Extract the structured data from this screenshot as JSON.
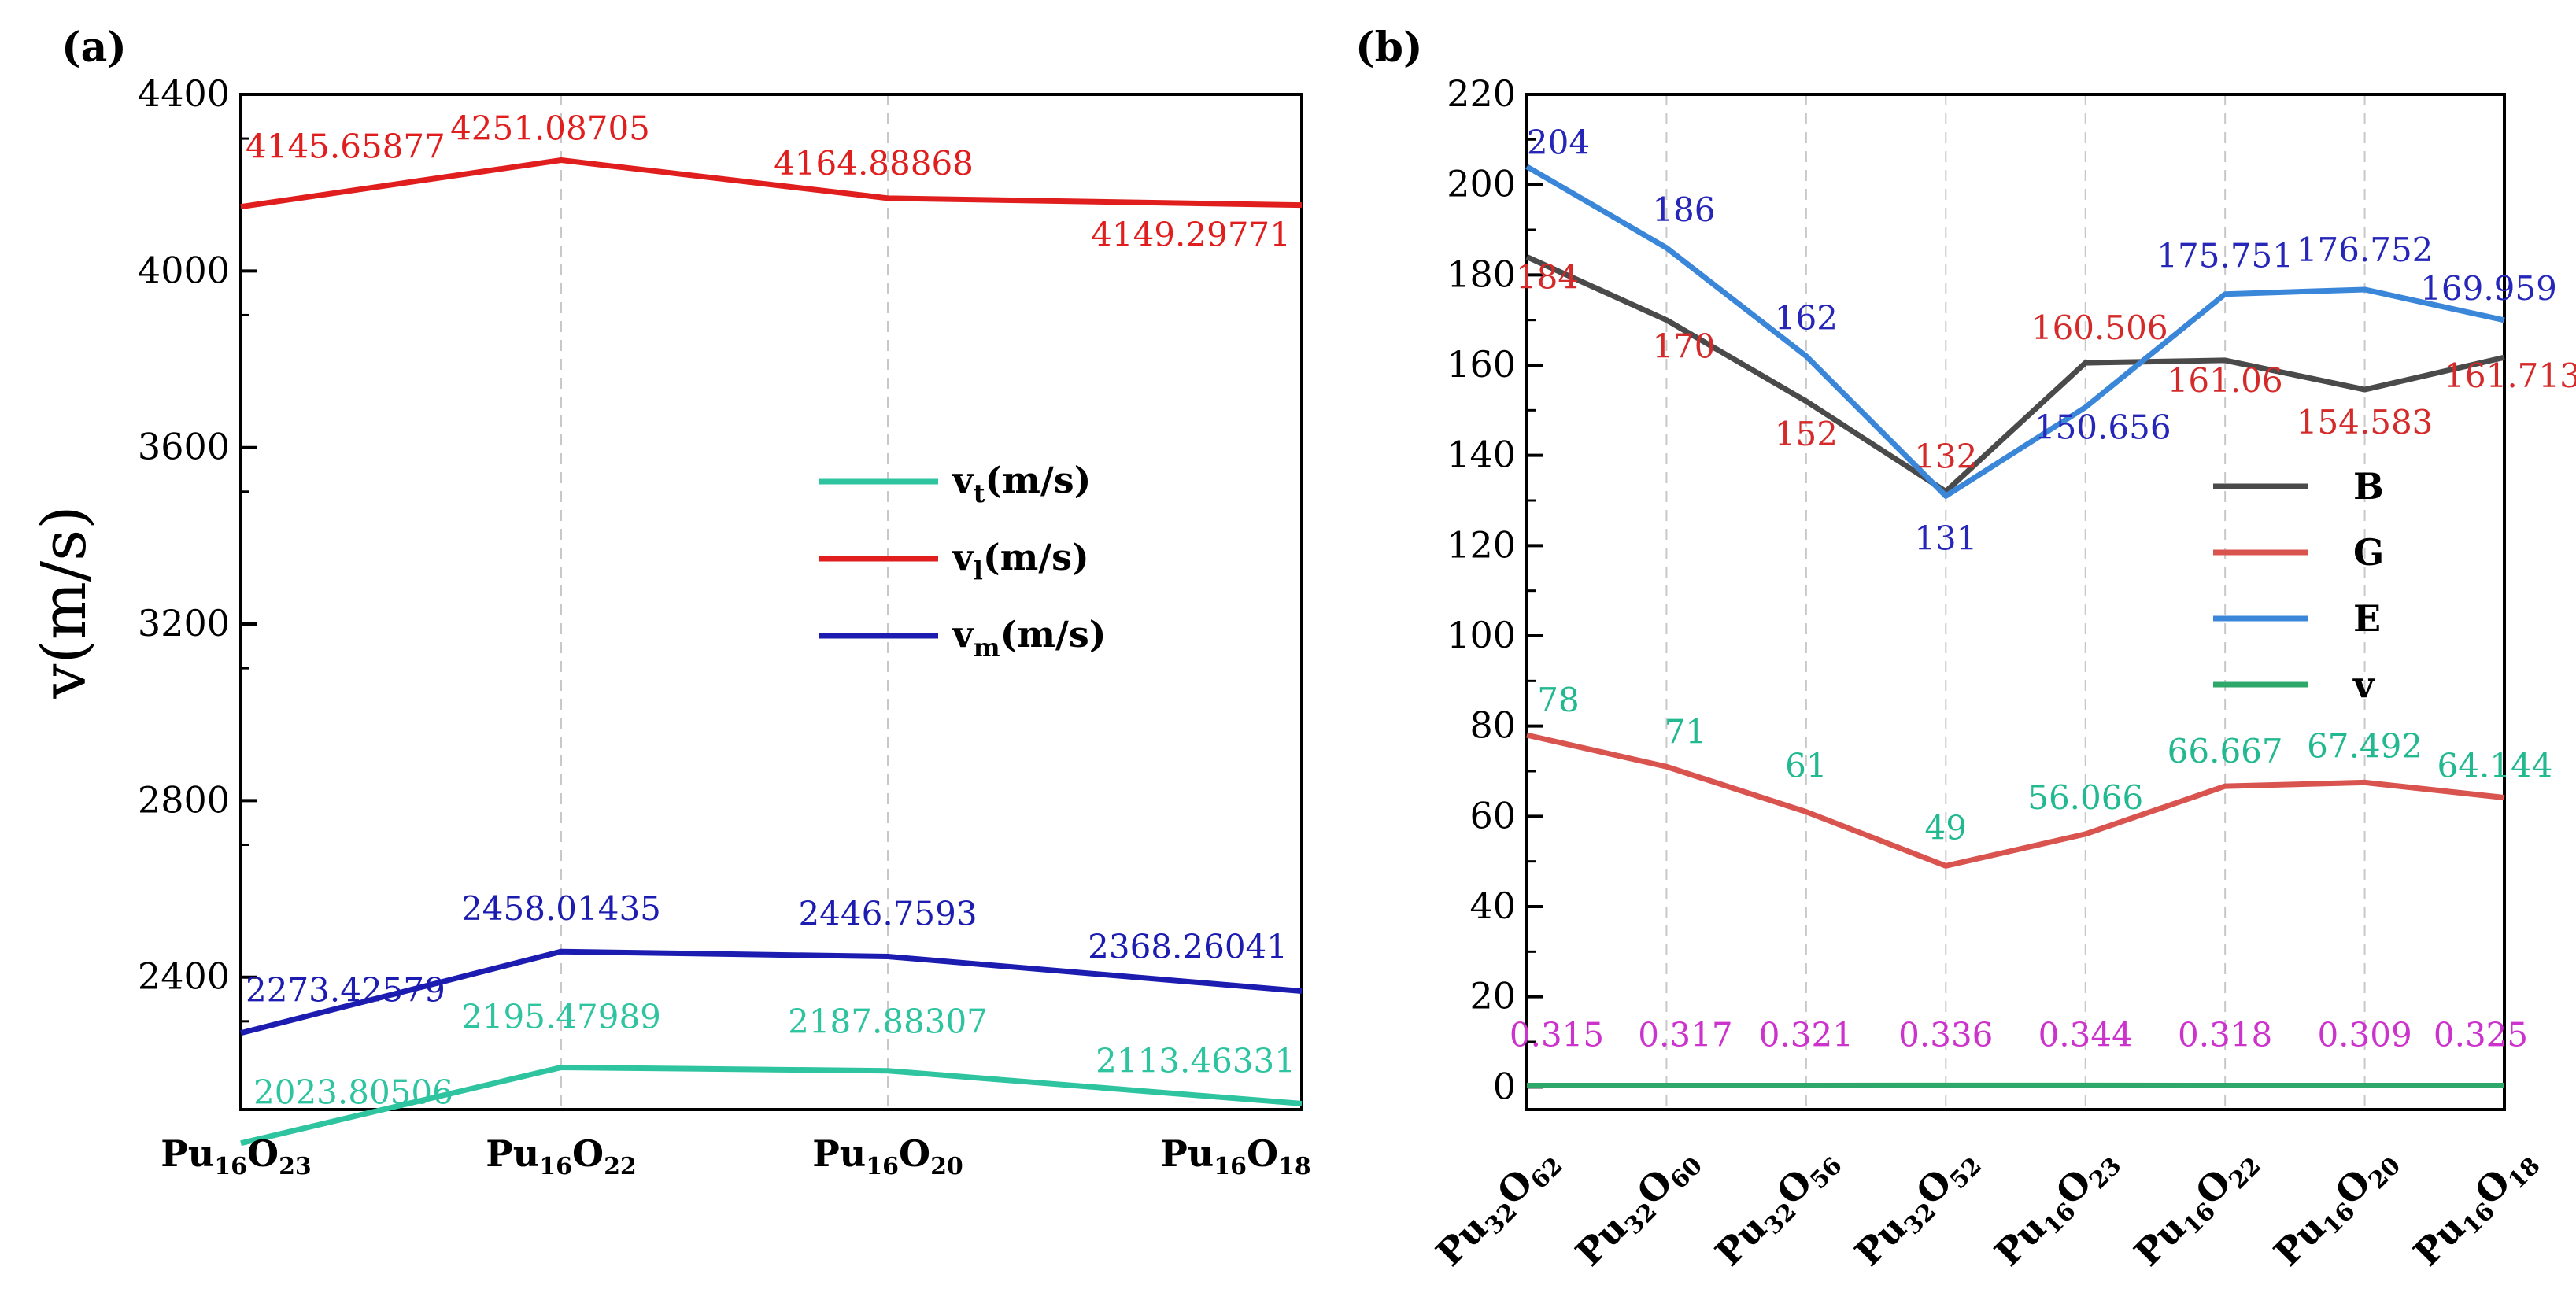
{
  "chart_data": [
    {
      "panel": "(a)",
      "type": "line",
      "ylabel": "v(m/s)",
      "ylim": [
        2100,
        4400
      ],
      "yticks": [
        "2400",
        "2800",
        "3200",
        "3600",
        "4000",
        "4400"
      ],
      "categories": [
        {
          "base": "Pu",
          "sub1": "16",
          "mid": "O",
          "sub2": "23"
        },
        {
          "base": "Pu",
          "sub1": "16",
          "mid": "O",
          "sub2": "22"
        },
        {
          "base": "Pu",
          "sub1": "16",
          "mid": "O",
          "sub2": "20"
        },
        {
          "base": "Pu",
          "sub1": "16",
          "mid": "O",
          "sub2": "18"
        }
      ],
      "series": [
        {
          "name": "vt(m/s)",
          "legend_base": "v",
          "legend_sub": "t",
          "legend_rest": "(m/s)",
          "color": "#2ec4a0",
          "values": [
            2023.80506,
            2195.47989,
            2187.88307,
            2113.46331
          ],
          "labels": [
            "2023.80506",
            "2195.47989",
            "2187.88307",
            "2113.46331"
          ]
        },
        {
          "name": "vl(m/s)",
          "legend_base": "v",
          "legend_sub": "l",
          "legend_rest": "(m/s)",
          "color": "#e01e1e",
          "values": [
            4145.65877,
            4251.08705,
            4164.88868,
            4149.29771
          ],
          "labels": [
            "4145.65877",
            "4251.08705",
            "4164.88868",
            "4149.29771"
          ]
        },
        {
          "name": "vm(m/s)",
          "legend_base": "v",
          "legend_sub": "m",
          "legend_rest": "(m/s)",
          "color": "#1c1cb0",
          "values": [
            2273.42579,
            2458.01435,
            2446.7593,
            2368.26041
          ],
          "labels": [
            "2273.42579",
            "2458.01435",
            "2446.7593",
            "2368.26041"
          ]
        }
      ]
    },
    {
      "panel": "(b)",
      "type": "line",
      "ylim": [
        -5,
        220
      ],
      "yticks": [
        "0",
        "20",
        "40",
        "60",
        "80",
        "100",
        "120",
        "140",
        "160",
        "180",
        "200",
        "220"
      ],
      "categories": [
        {
          "base": "Pu",
          "sub1": "32",
          "mid": "O",
          "sub2": "62"
        },
        {
          "base": "Pu",
          "sub1": "32",
          "mid": "O",
          "sub2": "60"
        },
        {
          "base": "Pu",
          "sub1": "32",
          "mid": "O",
          "sub2": "56"
        },
        {
          "base": "Pu",
          "sub1": "32",
          "mid": "O",
          "sub2": "52"
        },
        {
          "base": "Pu",
          "sub1": "16",
          "mid": "O",
          "sub2": "23"
        },
        {
          "base": "Pu",
          "sub1": "16",
          "mid": "O",
          "sub2": "22"
        },
        {
          "base": "Pu",
          "sub1": "16",
          "mid": "O",
          "sub2": "20"
        },
        {
          "base": "Pu",
          "sub1": "16",
          "mid": "O",
          "sub2": "18"
        }
      ],
      "series": [
        {
          "name": "B",
          "color": "#4a4a4a",
          "values": [
            184,
            170,
            152,
            132,
            160.506,
            161.06,
            154.583,
            161.713
          ],
          "labels": [
            "184",
            "170",
            "152",
            "132",
            "160.506",
            "161.06",
            "154.583",
            "161.713"
          ],
          "label_color": "#d42a2a"
        },
        {
          "name": "G",
          "color": "#d9534f",
          "values": [
            78,
            71,
            61,
            49,
            56.066,
            66.667,
            67.492,
            64.144
          ],
          "labels": [
            "78",
            "71",
            "61",
            "49",
            "56.066",
            "66.667",
            "67.492",
            "64.144"
          ],
          "label_color": "#22b890"
        },
        {
          "name": "E",
          "color": "#3a86d8",
          "values": [
            204,
            186,
            162,
            131,
            150.656,
            175.751,
            176.752,
            169.959
          ],
          "labels": [
            "204",
            "186",
            "162",
            "131",
            "150.656",
            "175.751",
            "176.752",
            "169.959"
          ],
          "label_color": "#2626b8"
        },
        {
          "name": "v",
          "color": "#2ea86a",
          "values": [
            0.315,
            0.317,
            0.321,
            0.336,
            0.344,
            0.318,
            0.309,
            0.325
          ],
          "labels": [
            "0.315",
            "0.317",
            "0.321",
            "0.336",
            "0.344",
            "0.318",
            "0.309",
            "0.325"
          ],
          "label_color": "#cc33cc"
        }
      ]
    }
  ]
}
